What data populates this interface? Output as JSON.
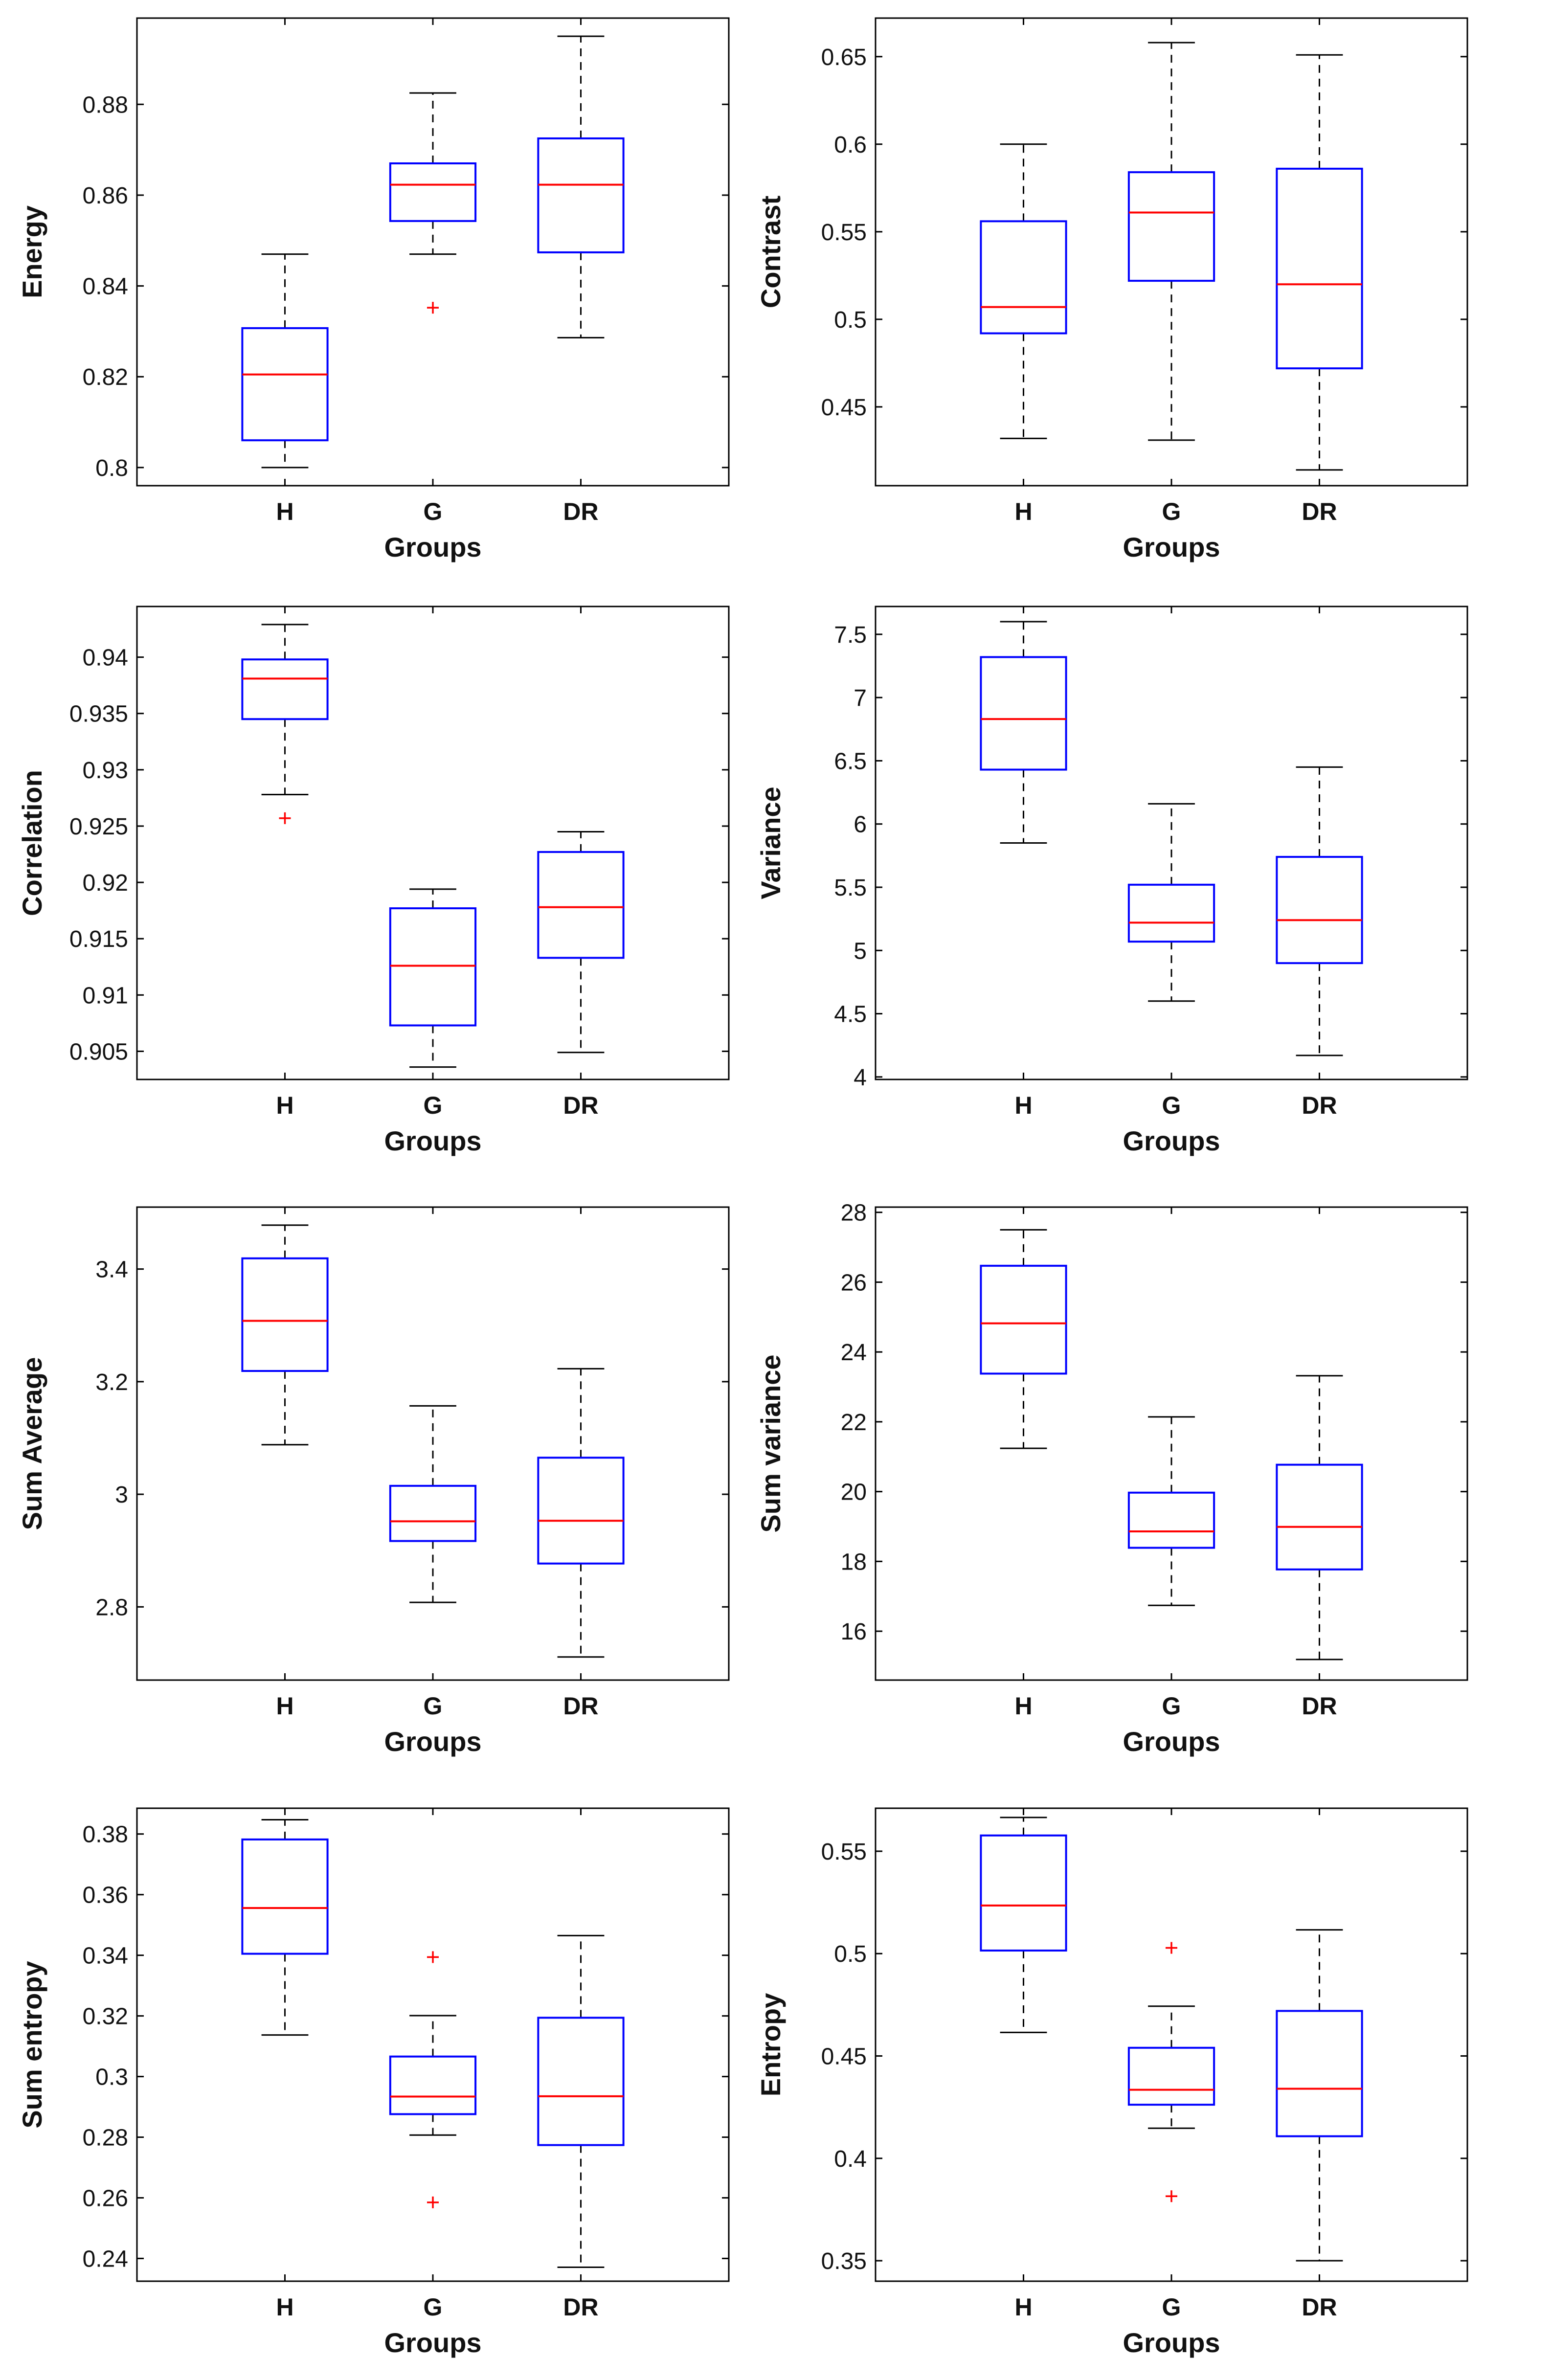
{
  "colors": {
    "box": "#0000ff",
    "median": "#ff0000",
    "whisker": "#000000",
    "outlier": "#ff0000",
    "axis": "#000000"
  },
  "chart_data": [
    {
      "type": "boxplot",
      "ylabel": "Energy",
      "xlabel": "Groups",
      "categories": [
        "H",
        "G",
        "DR"
      ],
      "ylim": [
        0.796,
        0.899
      ],
      "yticks": [
        0.8,
        0.82,
        0.84,
        0.86,
        0.88
      ],
      "ytick_labels": [
        "0.8",
        "0.82",
        "0.84",
        "0.86",
        "0.88"
      ],
      "series": [
        {
          "name": "H",
          "min": 0.8,
          "q1": 0.806,
          "median": 0.8205,
          "q3": 0.8307,
          "max": 0.847,
          "outliers": []
        },
        {
          "name": "G",
          "min": 0.847,
          "q1": 0.8543,
          "median": 0.8623,
          "q3": 0.867,
          "max": 0.8825,
          "outliers": [
            0.8352
          ]
        },
        {
          "name": "DR",
          "min": 0.8286,
          "q1": 0.8474,
          "median": 0.8623,
          "q3": 0.8725,
          "max": 0.895,
          "outliers": []
        }
      ]
    },
    {
      "type": "boxplot",
      "ylabel": "Contrast",
      "xlabel": "Groups",
      "categories": [
        "H",
        "G",
        "DR"
      ],
      "ylim": [
        0.405,
        0.672
      ],
      "yticks": [
        0.45,
        0.5,
        0.55,
        0.6,
        0.65
      ],
      "ytick_labels": [
        "0.45",
        "0.5",
        "0.55",
        "0.6",
        "0.65"
      ],
      "series": [
        {
          "name": "H",
          "min": 0.432,
          "q1": 0.492,
          "median": 0.507,
          "q3": 0.556,
          "max": 0.6,
          "outliers": []
        },
        {
          "name": "G",
          "min": 0.431,
          "q1": 0.522,
          "median": 0.561,
          "q3": 0.584,
          "max": 0.658,
          "outliers": []
        },
        {
          "name": "DR",
          "min": 0.414,
          "q1": 0.472,
          "median": 0.52,
          "q3": 0.586,
          "max": 0.651,
          "outliers": []
        }
      ]
    },
    {
      "type": "boxplot",
      "ylabel": "Correlation",
      "xlabel": "Groups",
      "categories": [
        "H",
        "G",
        "DR"
      ],
      "ylim": [
        0.9025,
        0.9445
      ],
      "yticks": [
        0.905,
        0.91,
        0.915,
        0.92,
        0.925,
        0.93,
        0.935,
        0.94
      ],
      "ytick_labels": [
        "0.905",
        "0.91",
        "0.915",
        "0.92",
        "0.925",
        "0.93",
        "0.935",
        "0.94"
      ],
      "series": [
        {
          "name": "H",
          "min": 0.9278,
          "q1": 0.9345,
          "median": 0.9381,
          "q3": 0.9398,
          "max": 0.9429,
          "outliers": [
            0.9257
          ]
        },
        {
          "name": "G",
          "min": 0.9036,
          "q1": 0.9073,
          "median": 0.9126,
          "q3": 0.9177,
          "max": 0.9194,
          "outliers": []
        },
        {
          "name": "DR",
          "min": 0.9049,
          "q1": 0.9133,
          "median": 0.9178,
          "q3": 0.9227,
          "max": 0.9245,
          "outliers": []
        }
      ]
    },
    {
      "type": "boxplot",
      "ylabel": "Variance",
      "xlabel": "Groups",
      "categories": [
        "H",
        "G",
        "DR"
      ],
      "ylim": [
        3.98,
        7.72
      ],
      "yticks": [
        4,
        4.5,
        5,
        5.5,
        6,
        6.5,
        7,
        7.5
      ],
      "ytick_labels": [
        "4",
        "4.5",
        "5",
        "5.5",
        "6",
        "6.5",
        "7",
        "7.5"
      ],
      "series": [
        {
          "name": "H",
          "min": 5.85,
          "q1": 6.43,
          "median": 6.83,
          "q3": 7.32,
          "max": 7.6,
          "outliers": []
        },
        {
          "name": "G",
          "min": 4.6,
          "q1": 5.07,
          "median": 5.22,
          "q3": 5.52,
          "max": 6.16,
          "outliers": []
        },
        {
          "name": "DR",
          "min": 4.17,
          "q1": 4.9,
          "median": 5.24,
          "q3": 5.74,
          "max": 6.45,
          "outliers": []
        }
      ]
    },
    {
      "type": "boxplot",
      "ylabel": "Sum Average",
      "xlabel": "Groups",
      "categories": [
        "H",
        "G",
        "DR"
      ],
      "ylim": [
        2.67,
        3.51
      ],
      "yticks": [
        2.8,
        3,
        3.2,
        3.4
      ],
      "ytick_labels": [
        "2.8",
        "3",
        "3.2",
        "3.4"
      ],
      "series": [
        {
          "name": "H",
          "min": 3.088,
          "q1": 3.219,
          "median": 3.308,
          "q3": 3.419,
          "max": 3.478,
          "outliers": []
        },
        {
          "name": "G",
          "min": 2.808,
          "q1": 2.917,
          "median": 2.952,
          "q3": 3.015,
          "max": 3.157,
          "outliers": []
        },
        {
          "name": "DR",
          "min": 2.711,
          "q1": 2.877,
          "median": 2.953,
          "q3": 3.065,
          "max": 3.223,
          "outliers": []
        }
      ]
    },
    {
      "type": "boxplot",
      "ylabel": "Sum variance",
      "xlabel": "Groups",
      "categories": [
        "H",
        "G",
        "DR"
      ],
      "ylim": [
        14.6,
        28.15
      ],
      "yticks": [
        16,
        18,
        20,
        22,
        24,
        26,
        28
      ],
      "ytick_labels": [
        "16",
        "18",
        "20",
        "22",
        "24",
        "26",
        "28"
      ],
      "series": [
        {
          "name": "H",
          "min": 21.24,
          "q1": 23.38,
          "median": 24.82,
          "q3": 26.47,
          "max": 27.5,
          "outliers": []
        },
        {
          "name": "G",
          "min": 16.74,
          "q1": 18.39,
          "median": 18.86,
          "q3": 19.97,
          "max": 22.14,
          "outliers": []
        },
        {
          "name": "DR",
          "min": 15.19,
          "q1": 17.77,
          "median": 18.99,
          "q3": 20.77,
          "max": 23.32,
          "outliers": []
        }
      ]
    },
    {
      "type": "boxplot",
      "ylabel": "Sum entropy",
      "xlabel": "Groups",
      "categories": [
        "H",
        "G",
        "DR"
      ],
      "ylim": [
        0.2325,
        0.3885
      ],
      "yticks": [
        0.24,
        0.26,
        0.28,
        0.3,
        0.32,
        0.34,
        0.36,
        0.38
      ],
      "ytick_labels": [
        "0.24",
        "0.26",
        "0.28",
        "0.3",
        "0.32",
        "0.34",
        "0.36",
        "0.38"
      ],
      "series": [
        {
          "name": "H",
          "min": 0.3137,
          "q1": 0.3405,
          "median": 0.3556,
          "q3": 0.3782,
          "max": 0.3847,
          "outliers": []
        },
        {
          "name": "G",
          "min": 0.2807,
          "q1": 0.2876,
          "median": 0.2934,
          "q3": 0.3066,
          "max": 0.3201,
          "outliers": [
            0.3394,
            0.2585
          ]
        },
        {
          "name": "DR",
          "min": 0.2371,
          "q1": 0.2774,
          "median": 0.2935,
          "q3": 0.3194,
          "max": 0.3465,
          "outliers": []
        }
      ]
    },
    {
      "type": "boxplot",
      "ylabel": "Entropy",
      "xlabel": "Groups",
      "categories": [
        "H",
        "G",
        "DR"
      ],
      "ylim": [
        0.34,
        0.571
      ],
      "yticks": [
        0.35,
        0.4,
        0.45,
        0.5,
        0.55
      ],
      "ytick_labels": [
        "0.35",
        "0.4",
        "0.45",
        "0.5",
        "0.55"
      ],
      "series": [
        {
          "name": "H",
          "min": 0.4615,
          "q1": 0.5015,
          "median": 0.5235,
          "q3": 0.5577,
          "max": 0.5665,
          "outliers": []
        },
        {
          "name": "G",
          "min": 0.4147,
          "q1": 0.4262,
          "median": 0.4335,
          "q3": 0.454,
          "max": 0.4743,
          "outliers": [
            0.5028,
            0.3815
          ]
        },
        {
          "name": "DR",
          "min": 0.35,
          "q1": 0.4108,
          "median": 0.434,
          "q3": 0.472,
          "max": 0.5116,
          "outliers": []
        }
      ]
    }
  ]
}
